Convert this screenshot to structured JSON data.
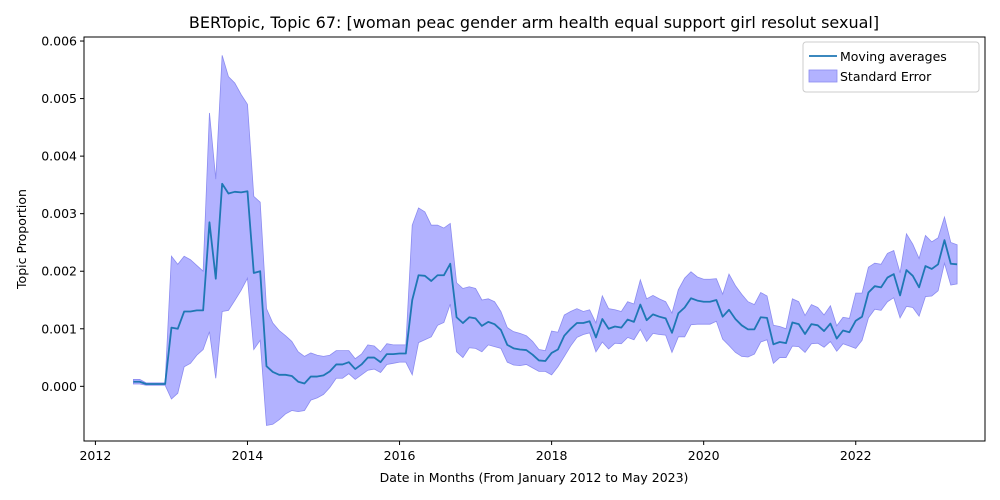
{
  "chart_data": {
    "type": "line",
    "title": "BERTopic, Topic 67: [woman peac gender arm health equal support girl resolut sexual]",
    "xlabel": "Date in Months (From January 2012 to May 2023)",
    "ylabel": "Topic Proportion",
    "xlim": [
      2011.85,
      2023.7
    ],
    "ylim": [
      -0.00095,
      0.00607
    ],
    "x_ticks": [
      2012,
      2014,
      2016,
      2018,
      2020,
      2022
    ],
    "x_tick_labels": [
      "2012",
      "2014",
      "2016",
      "2018",
      "2020",
      "2022"
    ],
    "y_ticks": [
      0.0,
      0.001,
      0.002,
      0.003,
      0.004,
      0.005,
      0.006
    ],
    "y_tick_labels": [
      "0.000",
      "0.001",
      "0.002",
      "0.003",
      "0.004",
      "0.005",
      "0.006"
    ],
    "grid": false,
    "legend_position": "top-right",
    "legend": [
      "Moving averages",
      "Standard Error"
    ],
    "colors": {
      "line": "#1f77b4",
      "band_fill": "#b2b2ff",
      "band_edge": "#8c8cf0"
    },
    "series": [
      {
        "name": "Moving averages",
        "x": [
          2012.5,
          2012.583,
          2012.667,
          2012.75,
          2012.833,
          2012.917,
          2013.0,
          2013.083,
          2013.167,
          2013.25,
          2013.333,
          2013.417,
          2013.5,
          2013.583,
          2013.667,
          2013.75,
          2013.833,
          2013.917,
          2014.0,
          2014.083,
          2014.167,
          2014.25,
          2014.333,
          2014.417,
          2014.5,
          2014.583,
          2014.667,
          2014.75,
          2014.833,
          2014.917,
          2015.0,
          2015.083,
          2015.167,
          2015.25,
          2015.333,
          2015.417,
          2015.5,
          2015.583,
          2015.667,
          2015.75,
          2015.833,
          2015.917,
          2016.0,
          2016.083,
          2016.167,
          2016.25,
          2016.333,
          2016.417,
          2016.5,
          2016.583,
          2016.667,
          2016.75,
          2016.833,
          2016.917,
          2017.0,
          2017.083,
          2017.167,
          2017.25,
          2017.333,
          2017.417,
          2017.5,
          2017.583,
          2017.667,
          2017.75,
          2017.833,
          2017.917,
          2018.0,
          2018.083,
          2018.167,
          2018.25,
          2018.333,
          2018.417,
          2018.5,
          2018.583,
          2018.667,
          2018.75,
          2018.833,
          2018.917,
          2019.0,
          2019.083,
          2019.167,
          2019.25,
          2019.333,
          2019.417,
          2019.5,
          2019.583,
          2019.667,
          2019.75,
          2019.833,
          2019.917,
          2020.0,
          2020.083,
          2020.167,
          2020.25,
          2020.333,
          2020.417,
          2020.5,
          2020.583,
          2020.667,
          2020.75,
          2020.833,
          2020.917,
          2021.0,
          2021.083,
          2021.167,
          2021.25,
          2021.333,
          2021.417,
          2021.5,
          2021.583,
          2021.667,
          2021.75,
          2021.833,
          2021.917,
          2022.0,
          2022.083,
          2022.167,
          2022.25,
          2022.333,
          2022.417,
          2022.5,
          2022.583,
          2022.667,
          2022.75,
          2022.833,
          2022.917,
          2023.0,
          2023.083,
          2023.167,
          2023.25,
          2023.333
        ],
        "values": [
          8e-05,
          8e-05,
          4e-05,
          4e-05,
          4e-05,
          4e-05,
          0.00102,
          0.001,
          0.0013,
          0.0013,
          0.00132,
          0.00132,
          0.00285,
          0.00187,
          0.00352,
          0.00335,
          0.00338,
          0.00337,
          0.00339,
          0.00197,
          0.002,
          0.00035,
          0.00025,
          0.0002,
          0.0002,
          0.00018,
          8e-05,
          5e-05,
          0.00017,
          0.00017,
          0.00019,
          0.00026,
          0.00038,
          0.00038,
          0.00042,
          0.0003,
          0.00038,
          0.0005,
          0.0005,
          0.00042,
          0.00056,
          0.00056,
          0.00057,
          0.00057,
          0.0015,
          0.00193,
          0.00192,
          0.00183,
          0.00193,
          0.00193,
          0.00213,
          0.0012,
          0.0011,
          0.0012,
          0.00118,
          0.00105,
          0.00112,
          0.00108,
          0.00098,
          0.00072,
          0.00066,
          0.00064,
          0.00063,
          0.00055,
          0.00045,
          0.00044,
          0.00058,
          0.00064,
          0.00088,
          0.001,
          0.0011,
          0.0011,
          0.00113,
          0.00085,
          0.00117,
          0.001,
          0.00104,
          0.00102,
          0.00116,
          0.00112,
          0.00142,
          0.00115,
          0.00125,
          0.00121,
          0.00118,
          0.00093,
          0.00127,
          0.00137,
          0.00153,
          0.00149,
          0.00147,
          0.00147,
          0.0015,
          0.00121,
          0.00133,
          0.00117,
          0.00106,
          0.00099,
          0.00099,
          0.0012,
          0.00119,
          0.00073,
          0.00077,
          0.00075,
          0.00111,
          0.00108,
          0.00091,
          0.00108,
          0.00106,
          0.00096,
          0.00109,
          0.00083,
          0.00097,
          0.00094,
          0.00114,
          0.00121,
          0.00163,
          0.00174,
          0.00172,
          0.00189,
          0.00195,
          0.00158,
          0.00202,
          0.00192,
          0.00172,
          0.00209,
          0.00204,
          0.00212,
          0.00254,
          0.00213,
          0.00212
        ]
      },
      {
        "name": "Standard Error",
        "x": [
          2012.5,
          2012.583,
          2012.667,
          2012.75,
          2012.833,
          2012.917,
          2013.0,
          2013.083,
          2013.167,
          2013.25,
          2013.333,
          2013.417,
          2013.5,
          2013.583,
          2013.667,
          2013.75,
          2013.833,
          2013.917,
          2014.0,
          2014.083,
          2014.167,
          2014.25,
          2014.333,
          2014.417,
          2014.5,
          2014.583,
          2014.667,
          2014.75,
          2014.833,
          2014.917,
          2015.0,
          2015.083,
          2015.167,
          2015.25,
          2015.333,
          2015.417,
          2015.5,
          2015.583,
          2015.667,
          2015.75,
          2015.833,
          2015.917,
          2016.0,
          2016.083,
          2016.167,
          2016.25,
          2016.333,
          2016.417,
          2016.5,
          2016.583,
          2016.667,
          2016.75,
          2016.833,
          2016.917,
          2017.0,
          2017.083,
          2017.167,
          2017.25,
          2017.333,
          2017.417,
          2017.5,
          2017.583,
          2017.667,
          2017.75,
          2017.833,
          2017.917,
          2018.0,
          2018.083,
          2018.167,
          2018.25,
          2018.333,
          2018.417,
          2018.5,
          2018.583,
          2018.667,
          2018.75,
          2018.833,
          2018.917,
          2019.0,
          2019.083,
          2019.167,
          2019.25,
          2019.333,
          2019.417,
          2019.5,
          2019.583,
          2019.667,
          2019.75,
          2019.833,
          2019.917,
          2020.0,
          2020.083,
          2020.167,
          2020.25,
          2020.333,
          2020.417,
          2020.5,
          2020.583,
          2020.667,
          2020.75,
          2020.833,
          2020.917,
          2021.0,
          2021.083,
          2021.167,
          2021.25,
          2021.333,
          2021.417,
          2021.5,
          2021.583,
          2021.667,
          2021.75,
          2021.833,
          2021.917,
          2022.0,
          2022.083,
          2022.167,
          2022.25,
          2022.333,
          2022.417,
          2022.5,
          2022.583,
          2022.667,
          2022.75,
          2022.833,
          2022.917,
          2023.0,
          2023.083,
          2023.167,
          2023.25,
          2023.333
        ],
        "upper": [
          0.00012,
          0.00012,
          6e-05,
          6e-05,
          6e-05,
          6e-05,
          0.00226,
          0.00212,
          0.00226,
          0.0022,
          0.0021,
          0.002,
          0.00475,
          0.0036,
          0.00575,
          0.00538,
          0.00527,
          0.00507,
          0.0049,
          0.0033,
          0.0032,
          0.00135,
          0.0011,
          0.00097,
          0.00088,
          0.00078,
          0.0006,
          0.00052,
          0.00058,
          0.00054,
          0.00052,
          0.00054,
          0.00062,
          0.00062,
          0.00062,
          0.00048,
          0.00056,
          0.00072,
          0.0007,
          0.0006,
          0.00074,
          0.00072,
          0.00072,
          0.00072,
          0.0028,
          0.0031,
          0.00303,
          0.0028,
          0.0028,
          0.00275,
          0.00283,
          0.0018,
          0.0017,
          0.00173,
          0.0017,
          0.0015,
          0.00152,
          0.00147,
          0.0013,
          0.00102,
          0.00095,
          0.00092,
          0.00088,
          0.00078,
          0.00064,
          0.00062,
          0.00096,
          0.00094,
          0.00124,
          0.0013,
          0.00135,
          0.0013,
          0.00133,
          0.0011,
          0.00157,
          0.00135,
          0.00133,
          0.0013,
          0.00147,
          0.00143,
          0.00185,
          0.00152,
          0.00158,
          0.00152,
          0.00147,
          0.00127,
          0.00168,
          0.00188,
          0.00199,
          0.0019,
          0.00186,
          0.00186,
          0.00187,
          0.0016,
          0.00195,
          0.00175,
          0.0016,
          0.00147,
          0.00142,
          0.00163,
          0.00157,
          0.00106,
          0.00104,
          0.001,
          0.00152,
          0.00147,
          0.00123,
          0.00142,
          0.00137,
          0.00124,
          0.0014,
          0.00105,
          0.0012,
          0.00118,
          0.00162,
          0.00162,
          0.00207,
          0.00214,
          0.00212,
          0.00231,
          0.00236,
          0.00197,
          0.00265,
          0.00247,
          0.00222,
          0.00262,
          0.00251,
          0.00258,
          0.00294,
          0.0025,
          0.00246
        ],
        "lower": [
          4e-05,
          4e-05,
          2e-05,
          2e-05,
          2e-05,
          2e-05,
          -0.00022,
          -0.00012,
          0.00034,
          0.0004,
          0.00054,
          0.00064,
          0.00095,
          0.00014,
          0.0013,
          0.00132,
          0.00149,
          0.00167,
          0.00188,
          0.00064,
          0.0008,
          -0.00068,
          -0.00066,
          -0.00058,
          -0.00048,
          -0.00042,
          -0.00044,
          -0.00042,
          -0.00024,
          -0.0002,
          -0.00014,
          -2e-05,
          0.00014,
          0.00014,
          0.00022,
          0.00012,
          0.0002,
          0.00028,
          0.0003,
          0.00024,
          0.00038,
          0.0004,
          0.00042,
          0.00042,
          0.0002,
          0.00076,
          0.00081,
          0.00086,
          0.00106,
          0.00111,
          0.00143,
          0.0006,
          0.0005,
          0.00067,
          0.00066,
          0.0006,
          0.00072,
          0.00069,
          0.00066,
          0.00042,
          0.00037,
          0.00036,
          0.00038,
          0.00032,
          0.00026,
          0.00026,
          0.0002,
          0.00034,
          0.00052,
          0.0007,
          0.00085,
          0.0009,
          0.00093,
          0.0006,
          0.00077,
          0.00065,
          0.00075,
          0.00074,
          0.00085,
          0.00081,
          0.00099,
          0.00078,
          0.00092,
          0.0009,
          0.00089,
          0.00059,
          0.00086,
          0.00086,
          0.00107,
          0.00108,
          0.00108,
          0.00108,
          0.00113,
          0.00082,
          0.00071,
          0.00059,
          0.00052,
          0.00051,
          0.00056,
          0.00077,
          0.00081,
          0.0004,
          0.0005,
          0.0005,
          0.0007,
          0.00069,
          0.00059,
          0.00074,
          0.00075,
          0.00068,
          0.00078,
          0.00061,
          0.00074,
          0.0007,
          0.00066,
          0.0008,
          0.00119,
          0.00134,
          0.00132,
          0.00147,
          0.00154,
          0.00119,
          0.00139,
          0.00137,
          0.00122,
          0.00156,
          0.00157,
          0.00166,
          0.00214,
          0.00176,
          0.00178
        ]
      }
    ]
  }
}
